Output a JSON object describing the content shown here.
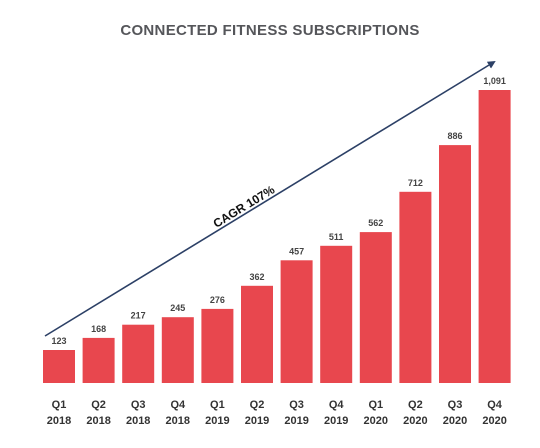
{
  "chart_data": {
    "type": "bar",
    "title": "CONNECTED FITNESS SUBSCRIPTIONS",
    "categories": [
      [
        "Q1",
        "2018"
      ],
      [
        "Q2",
        "2018"
      ],
      [
        "Q3",
        "2018"
      ],
      [
        "Q4",
        "2018"
      ],
      [
        "Q1",
        "2019"
      ],
      [
        "Q2",
        "2019"
      ],
      [
        "Q3",
        "2019"
      ],
      [
        "Q4",
        "2019"
      ],
      [
        "Q1",
        "2020"
      ],
      [
        "Q2",
        "2020"
      ],
      [
        "Q3",
        "2020"
      ],
      [
        "Q4",
        "2020"
      ]
    ],
    "values": [
      123,
      168,
      217,
      245,
      276,
      362,
      457,
      511,
      562,
      712,
      886,
      1091
    ],
    "value_labels": [
      "123",
      "168",
      "217",
      "245",
      "276",
      "362",
      "457",
      "511",
      "562",
      "712",
      "886",
      "1,091"
    ],
    "annotation": "CAGR 107%",
    "ylim": [
      0,
      1091
    ],
    "grid": false,
    "colors": {
      "bar": "#e8474e",
      "arrow": "#2c4066",
      "title": "#55565a"
    }
  }
}
